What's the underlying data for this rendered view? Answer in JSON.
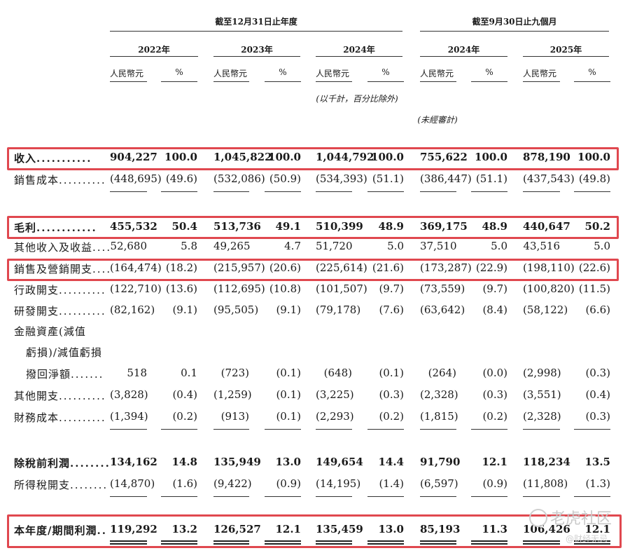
{
  "header": {
    "period_fy": "截至12月31日止年度",
    "period_9m": "截至9月30日止九個月",
    "years": [
      "2022年",
      "2023年",
      "2024年",
      "2024年",
      "2025年"
    ],
    "unit_rmb": "人民幣元",
    "unit_pct": "%",
    "note_thousands": "(以千計，百分比除外)",
    "note_unaudited": "(未經審計)"
  },
  "rows": [
    {
      "label": "收入",
      "leader": "...........",
      "bold": true,
      "values": [
        "904,227",
        "100.0",
        "1,045,822",
        "100.0",
        "1,044,792",
        "100.0",
        "755,622",
        "100.0",
        "878,190",
        "100.0"
      ]
    },
    {
      "label": "銷售成本",
      "leader": "..........",
      "bold": false,
      "values": [
        "(448,695)",
        "(49.6)",
        "(532,086)",
        "(50.9)",
        "(534,393)",
        "(51.1)",
        "(386,447)",
        "(51.1)",
        "(437,543)",
        "(49.8)"
      ]
    },
    {
      "label": "毛利",
      "leader": "............",
      "bold": true,
      "values": [
        "455,532",
        "50.4",
        "513,736",
        "49.1",
        "510,399",
        "48.9",
        "369,175",
        "48.9",
        "440,647",
        "50.2"
      ]
    },
    {
      "label": "其他收入及收益",
      "leader": "....",
      "bold": false,
      "values": [
        "52,680",
        "5.8",
        "49,265",
        "4.7",
        "51,720",
        "5.0",
        "37,510",
        "5.0",
        "43,516",
        "5.0"
      ]
    },
    {
      "label": "銷售及營銷開支",
      "leader": "....",
      "bold": false,
      "values": [
        "(164,474)",
        "(18.2)",
        "(215,957)",
        "(20.6)",
        "(225,614)",
        "(21.6)",
        "(173,287)",
        "(22.9)",
        "(198,110)",
        "(22.6)"
      ]
    },
    {
      "label": "行政開支",
      "leader": "..........",
      "bold": false,
      "values": [
        "(122,710)",
        "(13.6)",
        "(112,695)",
        "(10.8)",
        "(101,507)",
        "(9.7)",
        "(73,559)",
        "(9.7)",
        "(100,820)",
        "(11.5)"
      ]
    },
    {
      "label": "研發開支",
      "leader": "..........",
      "bold": false,
      "values": [
        "(82,162)",
        "(9.1)",
        "(95,505)",
        "(9.1)",
        "(79,178)",
        "(7.6)",
        "(63,642)",
        "(8.4)",
        "(58,122)",
        "(6.6)"
      ]
    },
    {
      "label": "撥回淨額",
      "leader": ".......",
      "bold": false,
      "values": [
        "518",
        "0.1",
        "(723)",
        "(0.1)",
        "(648)",
        "(0.1)",
        "(264)",
        "(0.0)",
        "(2,998)",
        "(0.3)"
      ]
    },
    {
      "label": "其他開支",
      "leader": "..........",
      "bold": false,
      "values": [
        "(3,828)",
        "(0.4)",
        "(1,259)",
        "(0.1)",
        "(3,225)",
        "(0.3)",
        "(2,328)",
        "(0.3)",
        "(3,551)",
        "(0.4)"
      ]
    },
    {
      "label": "財務成本",
      "leader": "..........",
      "bold": false,
      "values": [
        "(1,394)",
        "(0.2)",
        "(913)",
        "(0.1)",
        "(2,293)",
        "(0.2)",
        "(1,815)",
        "(0.2)",
        "(2,328)",
        "(0.3)"
      ]
    },
    {
      "label": "除稅前利潤",
      "leader": "........",
      "bold": true,
      "values": [
        "134,162",
        "14.8",
        "135,949",
        "13.0",
        "149,654",
        "14.4",
        "91,790",
        "12.1",
        "118,234",
        "13.5"
      ]
    },
    {
      "label": "所得稅開支",
      "leader": "........",
      "bold": false,
      "values": [
        "(14,870)",
        "(1.6)",
        "(9,422)",
        "(0.9)",
        "(14,195)",
        "(1.4)",
        "(6,597)",
        "(0.9)",
        "(11,808)",
        "(1.3)"
      ]
    },
    {
      "label": "本年度/期間利潤",
      "leader": "..",
      "bold": true,
      "values": [
        "119,292",
        "13.2",
        "126,527",
        "12.1",
        "135,459",
        "13.0",
        "85,193",
        "11.3",
        "106,426",
        "12.1"
      ]
    }
  ],
  "impairment_label_lines": [
    "金融資產(減值",
    "虧損)/減值虧損"
  ],
  "watermark": {
    "text1": "老虎社区",
    "text2": "@财经无忌"
  },
  "highlight_color": "#e0484f"
}
